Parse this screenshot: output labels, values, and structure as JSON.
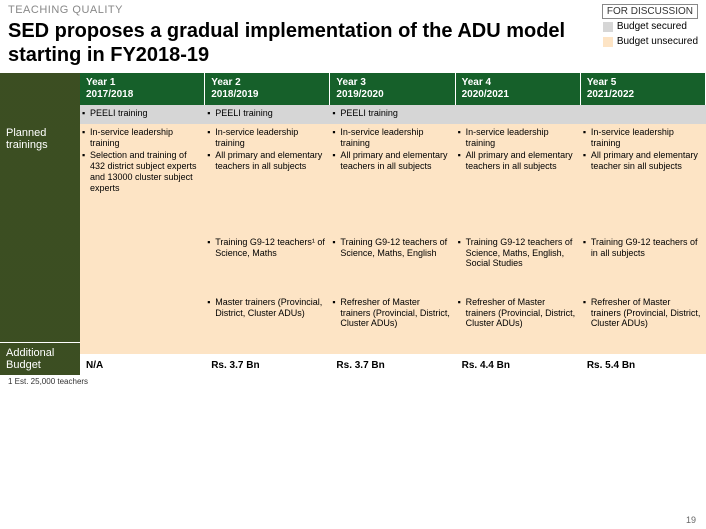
{
  "topbar": {
    "left": "TEACHING QUALITY",
    "right": "FOR DISCUSSION"
  },
  "title": "SED proposes a gradual implementation of the ADU model starting in FY2018-19",
  "legend": {
    "secured": {
      "label": "Budget secured",
      "color": "#d6d6d6"
    },
    "unsecured": {
      "label": "Budget unsecured",
      "color": "#fde4c5"
    }
  },
  "sidebar": {
    "planned": "Planned trainings",
    "budget": "Additional Budget"
  },
  "years": [
    {
      "title": "Year 1",
      "range": "2017/2018"
    },
    {
      "title": "Year 2",
      "range": "2018/2019"
    },
    {
      "title": "Year 3",
      "range": "2019/2020"
    },
    {
      "title": "Year 4",
      "range": "2020/2021"
    },
    {
      "title": "Year 5",
      "range": "2021/2022"
    }
  ],
  "peeliRow": [
    "PEELI training",
    "PEELI training",
    "PEELI training",
    "",
    ""
  ],
  "trainRow": [
    [
      "In-service leadership training",
      "Selection and training of 432 district subject experts and 13000 cluster subject experts"
    ],
    [
      "In-service leadership training",
      "All primary and elementary teachers in all subjects"
    ],
    [
      "In-service leadership training",
      "All primary and elementary teachers in all subjects"
    ],
    [
      "In-service leadership training",
      "All primary and elementary teachers in all subjects"
    ],
    [
      "In-service leadership training",
      "All primary and elementary teacher sin all subjects"
    ]
  ],
  "g9Row": [
    "",
    "Training G9-12 teachers¹ of Science, Maths",
    "Training G9-12 teachers of Science, Maths, English",
    "Training G9-12 teachers of Science, Maths, English, Social Studies",
    "Training G9-12 teachers of in all subjects"
  ],
  "masterRow": [
    "",
    "Master trainers (Provincial, District, Cluster ADUs)",
    "Refresher of Master trainers (Provincial, District, Cluster ADUs)",
    "Refresher of Master trainers (Provincial, District, Cluster ADUs)",
    "Refresher of Master trainers (Provincial, District, Cluster ADUs)"
  ],
  "budgetRow": [
    "N/A",
    "Rs. 3.7 Bn",
    "Rs. 3.7 Bn",
    "Rs. 4.4 Bn",
    "Rs. 5.4 Bn"
  ],
  "footnote": "1 Est. 25,000 teachers",
  "pagenum": "19",
  "colors": {
    "yearHeader": "#16602a",
    "sidebar": "#3a4a2a"
  }
}
